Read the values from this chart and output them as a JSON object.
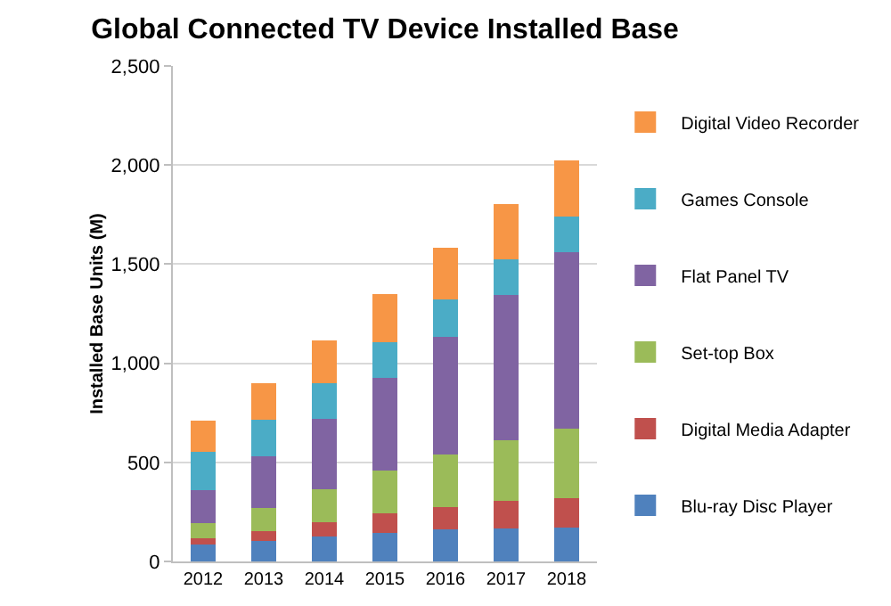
{
  "chart_data": {
    "type": "bar",
    "title": "Global Connected TV Device Installed Base",
    "ylabel": "Installed Base Units (M)",
    "categories": [
      "2012",
      "2013",
      "2014",
      "2015",
      "2016",
      "2017",
      "2018"
    ],
    "stacked": true,
    "ylim": [
      0,
      2500
    ],
    "yticks": [
      {
        "value": 0,
        "label": "0"
      },
      {
        "value": 500,
        "label": "500"
      },
      {
        "value": 1000,
        "label": "1,000"
      },
      {
        "value": 1500,
        "label": "1,500"
      },
      {
        "value": 2000,
        "label": "2,000"
      },
      {
        "value": 2500,
        "label": "2,500"
      }
    ],
    "grid": "y",
    "legend": "right",
    "series": [
      {
        "name": "Blu-ray Disc Player",
        "color": "#4f81bd",
        "values": [
          85,
          105,
          125,
          145,
          160,
          165,
          170
        ]
      },
      {
        "name": "Digital Media Adapter",
        "color": "#c0504d",
        "values": [
          30,
          50,
          75,
          100,
          115,
          140,
          150
        ]
      },
      {
        "name": "Set-top Box",
        "color": "#9bbb59",
        "values": [
          80,
          115,
          165,
          215,
          265,
          305,
          350
        ]
      },
      {
        "name": "Flat Panel TV",
        "color": "#8064a2",
        "values": [
          165,
          260,
          355,
          465,
          595,
          735,
          890
        ]
      },
      {
        "name": "Games Console",
        "color": "#4bacc6",
        "values": [
          195,
          185,
          180,
          180,
          185,
          180,
          180
        ]
      },
      {
        "name": "Digital Video Recorder",
        "color": "#f79646",
        "values": [
          155,
          185,
          215,
          245,
          265,
          280,
          285
        ]
      }
    ]
  }
}
